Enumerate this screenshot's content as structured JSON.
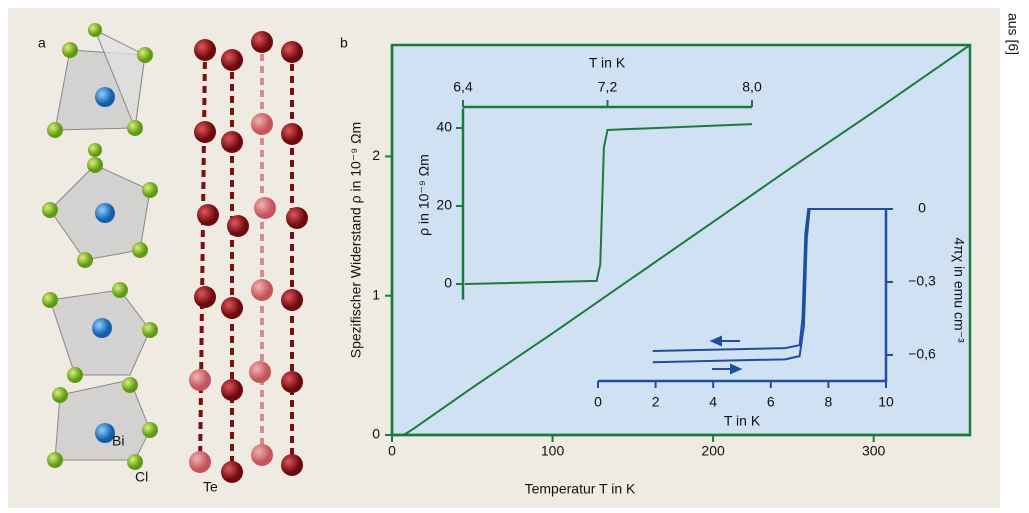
{
  "panel_labels": [
    "a",
    "b"
  ],
  "atom_labels": [
    "Bi",
    "Cl",
    "Te"
  ],
  "credit": "aus [6]",
  "chart_data": [
    {
      "type": "line",
      "xlabel": "Temperatur T in K",
      "ylabel": "Spezifischer Widerstand ρ in 10⁻⁹ Ωm",
      "x": [
        7,
        10,
        14,
        50,
        100,
        150,
        200,
        250,
        300,
        360
      ],
      "values": [
        0,
        0.02,
        0.05,
        0.34,
        0.73,
        1.13,
        1.53,
        1.93,
        2.32,
        2.8
      ],
      "color": "#1b7a3e",
      "xlim": [
        0,
        360
      ],
      "ylim": [
        0,
        2.8
      ],
      "xticks": [
        0,
        100,
        200,
        300
      ],
      "yticks": [
        0,
        1,
        2
      ]
    },
    {
      "type": "line",
      "xlabel": "T in K",
      "ylabel": "ρ in 10⁻⁹ Ωm",
      "x": [
        6.41,
        7.14,
        7.16,
        7.18,
        7.2,
        8.0
      ],
      "values": [
        0,
        0.8,
        5,
        35,
        39.5,
        41
      ],
      "color": "#1b7a3e",
      "xlim": [
        6.4,
        8.0
      ],
      "ylim": [
        -4,
        45
      ],
      "xticks": [
        {
          "value": 6.4,
          "label": "6,4"
        },
        {
          "value": 7.2,
          "label": "7,2"
        },
        {
          "value": 8.0,
          "label": "8,0"
        }
      ],
      "yticks": [
        0,
        20,
        40
      ]
    },
    {
      "type": "line",
      "xlabel": "T in K",
      "ylabel": "4πχ in emu cm⁻³",
      "series": [
        {
          "color": "#1e4f9c",
          "x": [
            1.9,
            6.5,
            7.0,
            7.1,
            7.2,
            7.3,
            10
          ],
          "values": [
            -0.584,
            -0.572,
            -0.56,
            -0.45,
            -0.1,
            0,
            0
          ]
        },
        {
          "color": "#1e4f9c",
          "x": [
            1.9,
            6.5,
            7.0,
            7.15,
            7.25,
            7.35,
            10
          ],
          "values": [
            -0.63,
            -0.618,
            -0.605,
            -0.48,
            -0.12,
            0,
            0
          ]
        }
      ],
      "xlim": [
        0,
        10
      ],
      "ylim": [
        -0.71,
        0
      ],
      "xticks": [
        0,
        2,
        4,
        6,
        8,
        10
      ],
      "yticks": [
        0,
        {
          "value": -0.3,
          "label": "−0,3"
        },
        {
          "value": -0.6,
          "label": "−0,6"
        }
      ]
    }
  ]
}
